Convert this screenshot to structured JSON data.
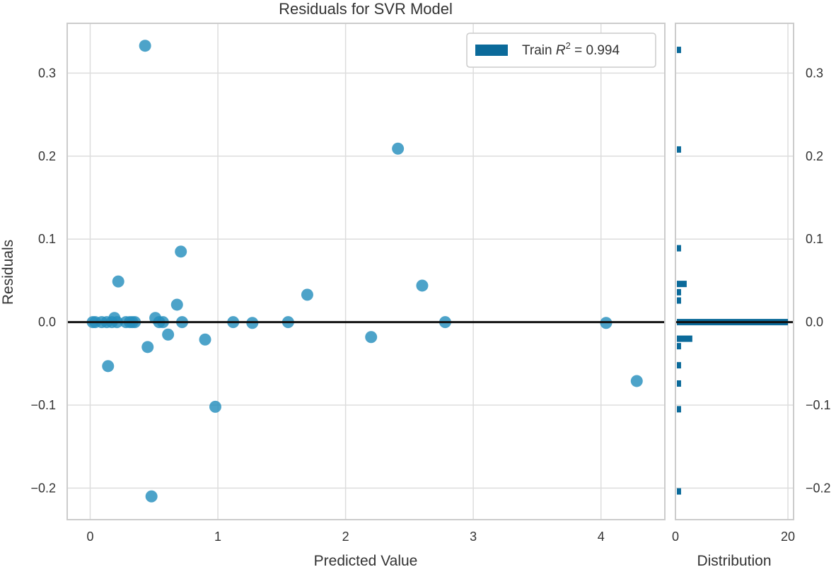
{
  "chart_data": {
    "type": "scatter",
    "title": "Residuals for SVR Model",
    "xlabel": "Predicted Value",
    "ylabel": "Residuals",
    "xlim": [
      -0.18,
      4.5
    ],
    "ylim": [
      -0.238,
      0.36
    ],
    "xticks": [
      0,
      1,
      2,
      3,
      4
    ],
    "yticks": [
      -0.2,
      -0.1,
      0.0,
      0.1,
      0.2,
      0.3
    ],
    "ytick_labels": [
      "−0.2",
      "−0.1",
      "0.0",
      "0.1",
      "0.2",
      "0.3"
    ],
    "grid": true,
    "zero_line": 0,
    "legend": {
      "position": "top-right",
      "label_prefix": "Train ",
      "label_r": "R",
      "label_sup": "2",
      "label_value": " = 0.994"
    },
    "series": [
      {
        "name": "Train",
        "color": "#268fbd",
        "points": [
          {
            "x": 0.02,
            "y": 0.0
          },
          {
            "x": 0.04,
            "y": 0.0
          },
          {
            "x": 0.09,
            "y": 0.0
          },
          {
            "x": 0.13,
            "y": 0.0
          },
          {
            "x": 0.17,
            "y": 0.0
          },
          {
            "x": 0.19,
            "y": 0.005
          },
          {
            "x": 0.21,
            "y": 0.0
          },
          {
            "x": 0.22,
            "y": 0.049
          },
          {
            "x": 0.14,
            "y": -0.053
          },
          {
            "x": 0.28,
            "y": 0.0
          },
          {
            "x": 0.31,
            "y": 0.0
          },
          {
            "x": 0.33,
            "y": 0.0
          },
          {
            "x": 0.35,
            "y": 0.0
          },
          {
            "x": 0.43,
            "y": 0.333
          },
          {
            "x": 0.45,
            "y": -0.03
          },
          {
            "x": 0.48,
            "y": -0.21
          },
          {
            "x": 0.51,
            "y": 0.005
          },
          {
            "x": 0.54,
            "y": 0.0
          },
          {
            "x": 0.57,
            "y": 0.0
          },
          {
            "x": 0.61,
            "y": -0.015
          },
          {
            "x": 0.68,
            "y": 0.021
          },
          {
            "x": 0.71,
            "y": 0.085
          },
          {
            "x": 0.72,
            "y": 0.0
          },
          {
            "x": 0.9,
            "y": -0.021
          },
          {
            "x": 0.98,
            "y": -0.102
          },
          {
            "x": 1.12,
            "y": 0.0
          },
          {
            "x": 1.27,
            "y": -0.001
          },
          {
            "x": 1.55,
            "y": 0.0
          },
          {
            "x": 1.7,
            "y": 0.033
          },
          {
            "x": 2.2,
            "y": -0.018
          },
          {
            "x": 2.41,
            "y": 0.209
          },
          {
            "x": 2.6,
            "y": 0.044
          },
          {
            "x": 2.78,
            "y": 0.0
          },
          {
            "x": 4.04,
            "y": -0.001
          },
          {
            "x": 4.28,
            "y": -0.071
          }
        ]
      }
    ],
    "distribution": {
      "xlabel": "Distribution",
      "xlim": [
        0,
        21
      ],
      "xticks": [
        0,
        20
      ],
      "color": "#0b6a9a",
      "bins": [
        {
          "y": 0.328,
          "count": 1
        },
        {
          "y": 0.208,
          "count": 1
        },
        {
          "y": 0.089,
          "count": 1
        },
        {
          "y": 0.046,
          "count": 2
        },
        {
          "y": 0.036,
          "count": 1
        },
        {
          "y": 0.026,
          "count": 1
        },
        {
          "y": 0.0,
          "count": 20
        },
        {
          "y": -0.02,
          "count": 3
        },
        {
          "y": -0.029,
          "count": 1
        },
        {
          "y": -0.052,
          "count": 1
        },
        {
          "y": -0.074,
          "count": 1
        },
        {
          "y": -0.105,
          "count": 1
        },
        {
          "y": -0.204,
          "count": 1
        }
      ]
    }
  }
}
